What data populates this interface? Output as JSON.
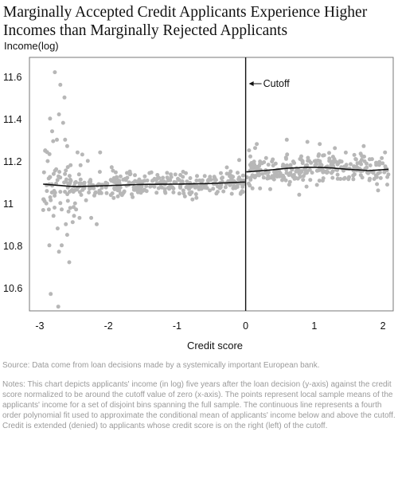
{
  "title": "Marginally Accepted Credit Applicants Experience Higher Incomes than Marginally Rejected Applicants",
  "source": "Source: Data come from loan decisions made by a systemically important European bank.",
  "notes": "Notes: This chart depicts applicants' income (in log) five years after the loan decision (y-axis) against the credit score normalized to be around the cutoff value of zero (x-axis). The points represent local sample means of the applicants' income for a set of disjoint bins spanning the full sample. The continuous line represents a fourth order polynomial fit used to approximate the conditional mean of applicants' income below and above the cutoff. Credit is extended (denied) to applicants whose credit score is on the right (left) of the cutoff.",
  "colors": {
    "points": "#b7b7b7",
    "fit": "#111111",
    "cutoff": "#111111",
    "frame": "#777777"
  },
  "chart_data": {
    "type": "scatter",
    "xlabel": "Credit score",
    "ylabel": "Income(log)",
    "xlim": [
      -3.15,
      2.15
    ],
    "ylim": [
      10.49,
      11.69
    ],
    "xticks": [
      -3,
      -2,
      -1,
      0,
      1,
      2
    ],
    "yticks": [
      10.6,
      10.8,
      11,
      11.2,
      11.4,
      11.6
    ],
    "tick_labels_x": [
      "-3",
      "-2",
      "-1",
      "0",
      "1",
      "2"
    ],
    "tick_labels_y": [
      "10.6",
      "10.8",
      "11",
      "11.2",
      "11.4",
      "11.6"
    ],
    "grid": false,
    "cutoff": {
      "x": 0,
      "label": "Cutoff"
    },
    "points_left_generation": {
      "x_range": [
        -2.95,
        -0.02
      ],
      "count": 360,
      "random_seed": 7
    },
    "points_right_generation": {
      "x_range": [
        0.02,
        2.08
      ],
      "count": 280,
      "random_seed": 11
    },
    "highlight_points": [
      {
        "x": -2.78,
        "y": 11.62
      },
      {
        "x": -2.7,
        "y": 11.56
      },
      {
        "x": -2.72,
        "y": 11.42
      },
      {
        "x": -2.85,
        "y": 11.4
      },
      {
        "x": -2.66,
        "y": 11.38
      },
      {
        "x": -2.64,
        "y": 11.5
      },
      {
        "x": -2.92,
        "y": 11.25
      },
      {
        "x": -2.82,
        "y": 11.34
      },
      {
        "x": -2.75,
        "y": 11.3
      },
      {
        "x": -2.63,
        "y": 11.3
      },
      {
        "x": -2.6,
        "y": 11.27
      },
      {
        "x": -2.55,
        "y": 11.18
      },
      {
        "x": -2.76,
        "y": 11.16
      },
      {
        "x": -2.7,
        "y": 11.0
      },
      {
        "x": -2.68,
        "y": 10.97
      },
      {
        "x": -2.62,
        "y": 10.9
      },
      {
        "x": -2.74,
        "y": 10.88
      },
      {
        "x": -2.6,
        "y": 10.85
      },
      {
        "x": -2.8,
        "y": 10.94
      },
      {
        "x": -2.86,
        "y": 10.8
      },
      {
        "x": -2.68,
        "y": 10.8
      },
      {
        "x": -2.72,
        "y": 10.77
      },
      {
        "x": -2.57,
        "y": 10.72
      },
      {
        "x": -2.84,
        "y": 10.57
      },
      {
        "x": -2.73,
        "y": 10.51
      },
      {
        "x": -2.58,
        "y": 10.96
      },
      {
        "x": -2.5,
        "y": 10.94
      },
      {
        "x": -2.47,
        "y": 10.97
      },
      {
        "x": -2.42,
        "y": 10.93
      },
      {
        "x": -2.52,
        "y": 10.91
      },
      {
        "x": -2.17,
        "y": 10.9
      },
      {
        "x": -2.25,
        "y": 10.93
      },
      {
        "x": -2.45,
        "y": 11.24
      },
      {
        "x": -2.38,
        "y": 11.23
      },
      {
        "x": -2.12,
        "y": 11.24
      },
      {
        "x": -2.3,
        "y": 11.2
      },
      {
        "x": 0.05,
        "y": 11.25
      },
      {
        "x": 0.6,
        "y": 11.3
      },
      {
        "x": 0.9,
        "y": 11.29
      },
      {
        "x": 1.08,
        "y": 11.28
      },
      {
        "x": 1.72,
        "y": 11.27
      },
      {
        "x": 2.03,
        "y": 11.24
      },
      {
        "x": 1.3,
        "y": 11.26
      },
      {
        "x": 0.1,
        "y": 11.07
      },
      {
        "x": 1.93,
        "y": 11.06
      },
      {
        "x": 0.78,
        "y": 11.04
      }
    ],
    "series": [
      {
        "fit_left_x": [
          -2.95,
          -2.5,
          -2.0,
          -1.5,
          -1.0,
          -0.5,
          -0.01
        ],
        "fit_left_y": [
          11.09,
          11.078,
          11.083,
          11.089,
          11.09,
          11.093,
          11.1
        ]
      },
      {
        "fit_right_x": [
          0.01,
          0.3,
          0.6,
          0.9,
          1.2,
          1.5,
          1.8,
          2.08
        ],
        "fit_right_y": [
          11.148,
          11.155,
          11.165,
          11.17,
          11.168,
          11.16,
          11.154,
          11.16
        ]
      }
    ]
  }
}
